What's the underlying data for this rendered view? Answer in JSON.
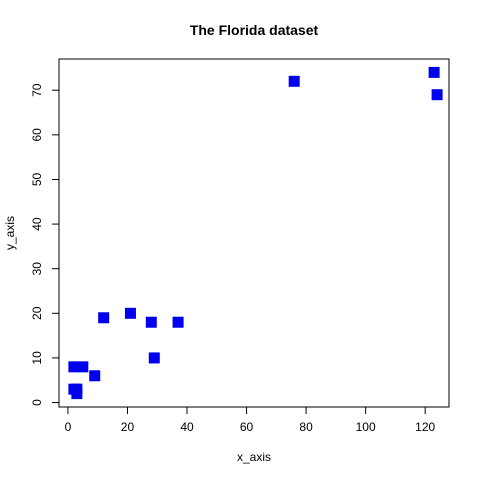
{
  "chart_data": {
    "type": "scatter",
    "title": "The Florida dataset",
    "xlabel": "x_axis",
    "ylabel": "y_axis",
    "xlim": [
      -3,
      128
    ],
    "ylim": [
      -1,
      77
    ],
    "xticks": [
      0,
      20,
      40,
      60,
      80,
      100,
      120
    ],
    "yticks": [
      0,
      10,
      20,
      30,
      40,
      50,
      60,
      70
    ],
    "grid": false,
    "marker": "square",
    "marker_color": "#0000ee",
    "points": [
      {
        "x": 2,
        "y": 8
      },
      {
        "x": 5,
        "y": 8
      },
      {
        "x": 2,
        "y": 3
      },
      {
        "x": 3,
        "y": 3
      },
      {
        "x": 3,
        "y": 2
      },
      {
        "x": 9,
        "y": 6
      },
      {
        "x": 12,
        "y": 19
      },
      {
        "x": 21,
        "y": 20
      },
      {
        "x": 28,
        "y": 18
      },
      {
        "x": 37,
        "y": 18
      },
      {
        "x": 29,
        "y": 10
      },
      {
        "x": 76,
        "y": 72
      },
      {
        "x": 123,
        "y": 74
      },
      {
        "x": 124,
        "y": 69
      }
    ]
  }
}
